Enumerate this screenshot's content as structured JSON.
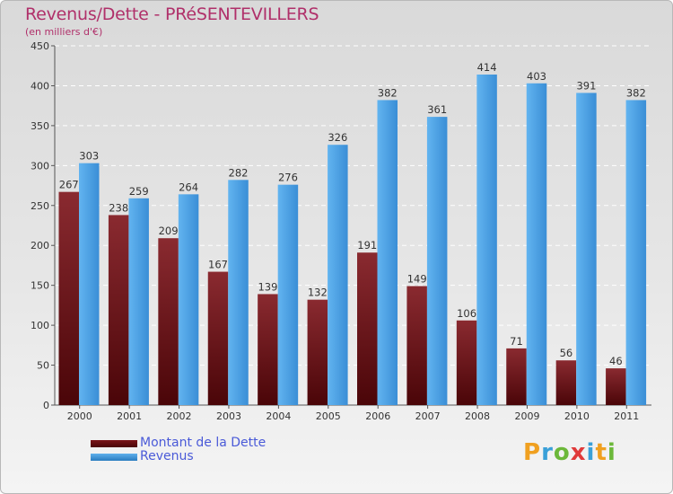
{
  "page": {
    "title": "Revenus/Dette - PRéSENTEVILLERS",
    "subtitle": "(en milliers d'€)"
  },
  "chart_data": {
    "type": "bar",
    "categories": [
      "2000",
      "2001",
      "2002",
      "2003",
      "2004",
      "2005",
      "2006",
      "2007",
      "2008",
      "2009",
      "2010",
      "2011"
    ],
    "series": [
      {
        "name": "Montant de la Dette",
        "values": [
          267,
          238,
          209,
          167,
          139,
          132,
          191,
          149,
          106,
          71,
          56,
          46
        ],
        "color": "#6b0f12"
      },
      {
        "name": "Revenus",
        "values": [
          303,
          259,
          264,
          282,
          276,
          326,
          382,
          361,
          414,
          403,
          391,
          382
        ],
        "color": "#4aa0e0"
      }
    ],
    "ylim": [
      0,
      450
    ],
    "yticks": [
      0,
      50,
      100,
      150,
      200,
      250,
      300,
      350,
      400,
      450
    ],
    "grid": true,
    "legend_position": "bottom-left",
    "data_labels": true
  },
  "legend": {
    "items": [
      {
        "label": "Montant de la Dette",
        "color": "#6b0f12"
      },
      {
        "label": "Revenus",
        "color": "#4aa0e0"
      }
    ]
  },
  "logo": {
    "letters": [
      "P",
      "r",
      "o",
      "x",
      "i",
      "t",
      "i"
    ],
    "colors": [
      "#f0a020",
      "#3aa0d8",
      "#6cb83a",
      "#e03a3a",
      "#3aa0d8",
      "#f0a020",
      "#6cb83a"
    ]
  }
}
